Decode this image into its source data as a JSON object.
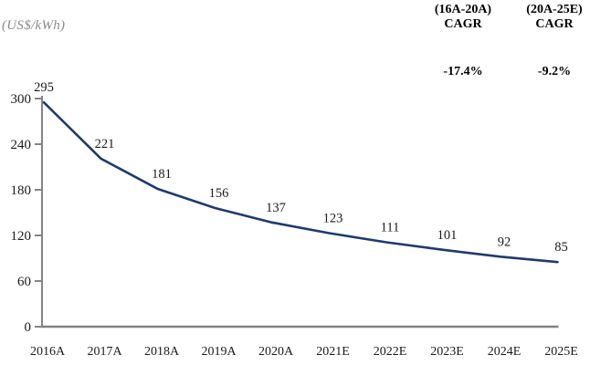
{
  "chart_data": {
    "type": "line",
    "title": "",
    "ylabel": "(US$/kWh)",
    "xlabel": "",
    "categories": [
      "2016A",
      "2017A",
      "2018A",
      "2019A",
      "2020A",
      "2021E",
      "2022E",
      "2023E",
      "2024E",
      "2025E"
    ],
    "values": [
      295,
      221,
      181,
      156,
      137,
      123,
      111,
      101,
      92,
      85
    ],
    "yticks": [
      0,
      60,
      120,
      180,
      240,
      300
    ],
    "ylim": [
      0,
      300
    ],
    "grid": "off",
    "legend": "none",
    "colors": {
      "line": "#1f3b6d",
      "axis": "#848484",
      "text": "#1a1a1a",
      "unit_label": "#8a8a8a",
      "annotation_text": "#000000"
    },
    "annotations": [
      {
        "label": "(16A-20A)",
        "sublabel": "CAGR",
        "value": "-17.4%"
      },
      {
        "label": "(20A-25E)",
        "sublabel": "CAGR",
        "value": "-9.2%"
      }
    ]
  }
}
